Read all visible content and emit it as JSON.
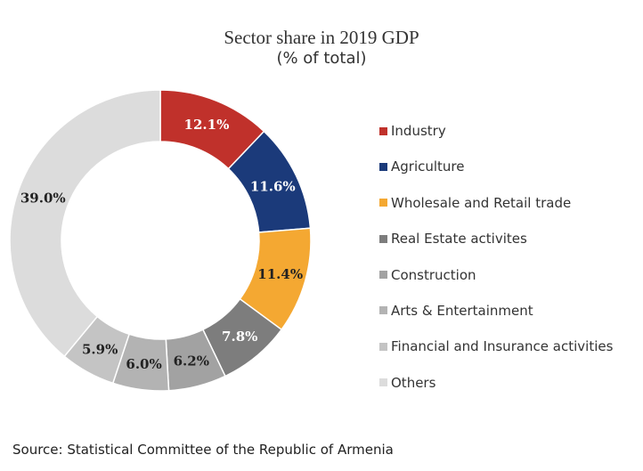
{
  "chart_data": {
    "type": "pie",
    "title": "Sector share in 2019 GDP",
    "subtitle": "(% of total)",
    "categories": [
      "Industry",
      "Agriculture",
      "Wholesale and Retail trade",
      "Real Estate activites",
      "Construction",
      "Arts & Entertainment",
      "Financial and Insurance activities",
      "Others"
    ],
    "values": [
      12.1,
      11.6,
      11.4,
      7.8,
      6.2,
      6.0,
      5.9,
      39.0
    ],
    "labels": [
      "12.1%",
      "11.6%",
      "11.4%",
      "7.8%",
      "6.2%",
      "6.0%",
      "5.9%",
      "39.0%"
    ],
    "colors": [
      "#c0312b",
      "#1b3a7a",
      "#f4a832",
      "#7d7d7d",
      "#a2a2a2",
      "#b3b3b3",
      "#c4c4c4",
      "#dcdcdc"
    ],
    "label_colors": [
      "#ffffff",
      "#ffffff",
      "#222222",
      "#ffffff",
      "#222222",
      "#222222",
      "#222222",
      "#222222"
    ],
    "donut": true,
    "legend_position": "right"
  },
  "source": "Source: Statistical Committee of the Republic of Armenia"
}
